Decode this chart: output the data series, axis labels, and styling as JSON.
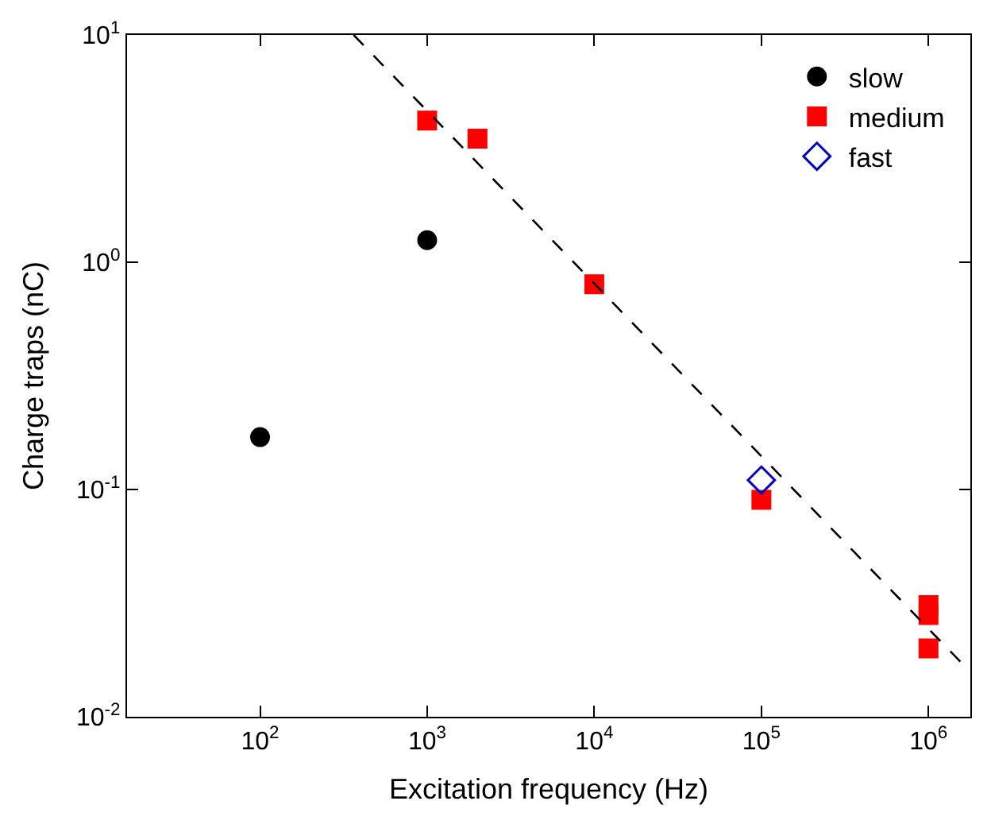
{
  "chart_data": {
    "type": "scatter",
    "xlabel": "Excitation frequency (Hz)",
    "ylabel": "Charge traps (nC)",
    "log": "xy",
    "legend": "top right",
    "xlim": [
      16,
      1780000
    ],
    "ylim": [
      0.01,
      10
    ],
    "xticks": [
      {
        "value": 100,
        "label": "10$^{2}$"
      },
      {
        "value": 1000,
        "label": "10$^{3}$"
      },
      {
        "value": 10000,
        "label": "10$^{4}$"
      },
      {
        "value": 100000,
        "label": "10$^{5}$"
      },
      {
        "value": 1000000,
        "label": "10$^{6}$"
      }
    ],
    "yticks": [
      {
        "value": 0.01,
        "label": "10$^{-2}$"
      },
      {
        "value": 0.1,
        "label": "10$^{-1}$"
      },
      {
        "value": 1,
        "label": "10$^{0}$"
      },
      {
        "value": 10,
        "label": "10$^{1}$"
      }
    ],
    "series": [
      {
        "name": "slow",
        "color": "#000000",
        "marker": "circle",
        "x": [
          100,
          1000
        ],
        "values": [
          0.17,
          1.25
        ]
      },
      {
        "name": "medium",
        "color": "#ff0000",
        "marker": "square",
        "x": [
          1000,
          2000,
          10000,
          100000,
          1000000,
          1000000,
          1000000
        ],
        "values": [
          4.2,
          3.5,
          0.8,
          0.09,
          0.031,
          0.028,
          0.02
        ]
      },
      {
        "name": "fast",
        "color": "#0000cc",
        "marker": "diamond",
        "x": [
          100000
        ],
        "values": [
          0.11
        ]
      },
      {
        "type": "line",
        "color": "#000000",
        "line_style": "dashed",
        "marker": "none",
        "x": [
          363,
          1700000
        ],
        "values": [
          10,
          0.0163
        ]
      }
    ]
  }
}
